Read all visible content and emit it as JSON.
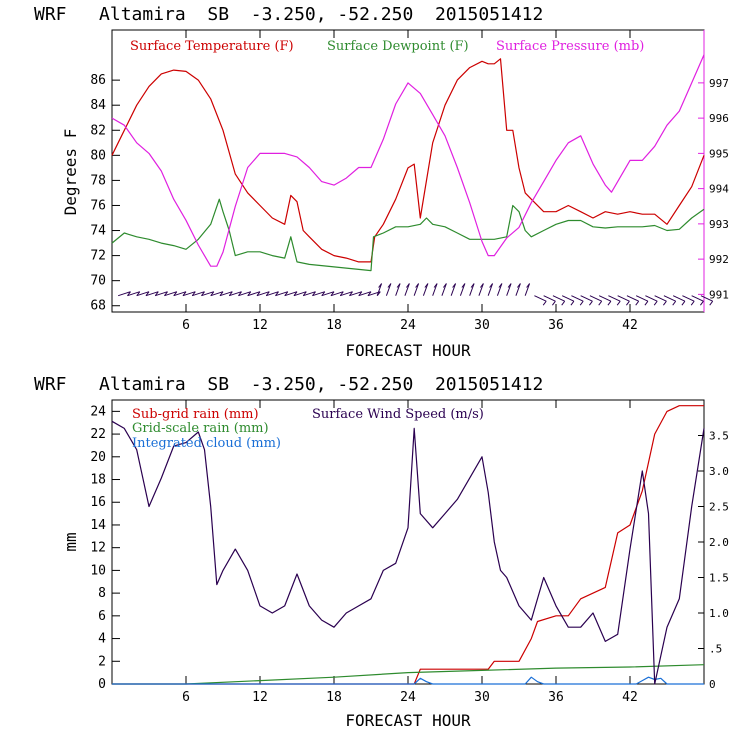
{
  "chart_data": [
    {
      "type": "line",
      "title": "WRF   Altamira  SB  -3.250, -52.250  2015051412",
      "xlabel": "FORECAST HOUR",
      "ylabel": "Degrees F",
      "xlim": [
        0,
        48
      ],
      "ylim": [
        67.5,
        90
      ],
      "x_ticks": [
        6,
        12,
        18,
        24,
        30,
        36,
        42
      ],
      "y_ticks": [
        68,
        70,
        72,
        74,
        76,
        78,
        80,
        82,
        84,
        86
      ],
      "y2lim": [
        990.5,
        998.5
      ],
      "y2_ticks": [
        991,
        992,
        993,
        994,
        995,
        996,
        997
      ],
      "legend": [
        "Surface Temperature (F)",
        "Surface Dewpoint (F)",
        "Surface Pressure (mb)"
      ],
      "colors": {
        "temperature": "#cc0000",
        "dewpoint": "#2e8b2e",
        "pressure": "#e020e0",
        "barbs": "#2a0050"
      },
      "series": [
        {
          "name": "Surface Temperature (F)",
          "axis": "left",
          "x": [
            0,
            1,
            2,
            3,
            4,
            5,
            6,
            7,
            8,
            9,
            10,
            11,
            12,
            13,
            14,
            14.5,
            15,
            15.5,
            16,
            17,
            18,
            19,
            20,
            21,
            21.3,
            22,
            23,
            24,
            24.5,
            25,
            25.5,
            26,
            27,
            28,
            29,
            30,
            30.5,
            31,
            31.5,
            32,
            32.5,
            33,
            33.5,
            34,
            35,
            36,
            37,
            38,
            39,
            40,
            41,
            42,
            43,
            44,
            45,
            46,
            47,
            48
          ],
          "y": [
            80,
            82,
            84,
            85.5,
            86.5,
            86.8,
            86.7,
            86,
            84.5,
            82,
            78.5,
            77,
            76,
            75,
            74.5,
            76.8,
            76.3,
            74,
            73.5,
            72.5,
            72,
            71.8,
            71.5,
            71.5,
            73.5,
            74.5,
            76.5,
            79,
            79.3,
            75,
            78,
            81,
            84,
            86,
            87,
            87.5,
            87.3,
            87.3,
            87.7,
            82,
            82,
            79,
            77,
            76.5,
            75.5,
            75.5,
            76,
            75.5,
            75,
            75.5,
            75.3,
            75.5,
            75.3,
            75.3,
            74.5,
            76,
            77.5,
            80
          ]
        },
        {
          "name": "Surface Dewpoint (F)",
          "axis": "left",
          "x": [
            0,
            1,
            2,
            3,
            4,
            5,
            6,
            7,
            8,
            8.7,
            9,
            9.5,
            10,
            11,
            12,
            13,
            14,
            14.5,
            15,
            16,
            17,
            18,
            19,
            20,
            21,
            21.2,
            22,
            23,
            24,
            25,
            25.5,
            26,
            27,
            28,
            29,
            30,
            31,
            32,
            32.5,
            33,
            33.5,
            34,
            35,
            36,
            37,
            38,
            39,
            40,
            41,
            42,
            43,
            44,
            45,
            46,
            47,
            48
          ],
          "y": [
            73,
            73.8,
            73.5,
            73.3,
            73,
            72.8,
            72.5,
            73.3,
            74.5,
            76.5,
            75.5,
            74,
            72,
            72.3,
            72.3,
            72,
            71.8,
            73.5,
            71.5,
            71.3,
            71.2,
            71.1,
            71,
            70.9,
            70.8,
            73.5,
            73.8,
            74.3,
            74.3,
            74.5,
            75,
            74.5,
            74.3,
            73.8,
            73.3,
            73.3,
            73.3,
            73.5,
            76,
            75.5,
            74,
            73.5,
            74,
            74.5,
            74.8,
            74.8,
            74.3,
            74.2,
            74.3,
            74.3,
            74.3,
            74.4,
            74,
            74.1,
            75,
            75.7
          ]
        },
        {
          "name": "Surface Pressure (mb)",
          "axis": "right",
          "x": [
            0,
            1,
            2,
            3,
            4,
            5,
            6,
            7,
            8,
            8.5,
            9,
            10,
            11,
            12,
            13,
            14,
            15,
            16,
            17,
            18,
            19,
            20,
            21,
            22,
            23,
            24,
            25,
            26,
            27,
            28,
            29,
            30,
            30.5,
            31,
            32,
            33,
            34,
            35,
            36,
            37,
            38,
            39,
            40,
            40.5,
            41,
            42,
            43,
            44,
            45,
            46,
            47,
            48
          ],
          "y": [
            996,
            995.8,
            995.3,
            995,
            994.5,
            993.7,
            993.1,
            992.4,
            991.8,
            991.8,
            992.2,
            993.5,
            994.6,
            995,
            995,
            995,
            994.9,
            994.6,
            994.2,
            994.1,
            994.3,
            994.6,
            994.6,
            995.4,
            996.4,
            997,
            996.7,
            996.1,
            995.5,
            994.6,
            993.6,
            992.5,
            992.1,
            992.1,
            992.6,
            992.9,
            993.6,
            994.2,
            994.8,
            995.3,
            995.5,
            994.7,
            994.1,
            993.9,
            994.2,
            994.8,
            994.8,
            995.2,
            995.8,
            996.2,
            997,
            997.8
          ]
        }
      ]
    },
    {
      "type": "line",
      "title": "WRF   Altamira  SB  -3.250, -52.250  2015051412",
      "xlabel": "FORECAST HOUR",
      "ylabel": "mm",
      "xlim": [
        0,
        48
      ],
      "ylim": [
        0,
        25
      ],
      "x_ticks": [
        6,
        12,
        18,
        24,
        30,
        36,
        42
      ],
      "y_ticks": [
        0,
        2,
        4,
        6,
        8,
        10,
        12,
        14,
        16,
        18,
        20,
        22,
        24
      ],
      "y2lim": [
        0,
        4.0
      ],
      "y2_ticks": [
        0,
        0.5,
        1.0,
        1.5,
        2.0,
        2.5,
        3.0,
        3.5
      ],
      "y2_tick_labels": [
        "0",
        ".5",
        "1.0",
        "1.5",
        "2.0",
        "2.5",
        "3.0",
        "3.5"
      ],
      "legend": [
        "Sub-grid rain (mm)",
        "Grid-scale rain (mm)",
        "Integrated cloud (mm)",
        "Surface Wind Speed (m/s)"
      ],
      "colors": {
        "subgrid": "#cc0000",
        "gridscale": "#2e8b2e",
        "cloud": "#1a6fd6",
        "wind": "#2a0050"
      },
      "series": [
        {
          "name": "Sub-grid rain (mm)",
          "axis": "left",
          "x": [
            0,
            24.5,
            25,
            30.5,
            31,
            33,
            34,
            34.5,
            36,
            37,
            38,
            40,
            41,
            42,
            43,
            44,
            45,
            46,
            48
          ],
          "y": [
            0,
            0,
            1.3,
            1.3,
            2,
            2,
            4,
            5.5,
            6,
            6,
            7.5,
            8.5,
            13.3,
            14,
            17,
            22,
            24,
            24.5,
            24.5
          ]
        },
        {
          "name": "Grid-scale rain (mm)",
          "axis": "left",
          "x": [
            0,
            6,
            12,
            18,
            24,
            30,
            36,
            42,
            48
          ],
          "y": [
            0,
            0,
            0.3,
            0.6,
            1,
            1.2,
            1.4,
            1.5,
            1.7
          ]
        },
        {
          "name": "Integrated cloud (mm)",
          "axis": "left",
          "x": [
            0,
            24.5,
            25,
            25.5,
            26,
            33.5,
            34,
            34.5,
            35,
            42.5,
            43,
            43.5,
            44,
            44.5,
            45,
            48
          ],
          "y": [
            0,
            0,
            0.5,
            0.2,
            0,
            0,
            0.6,
            0.2,
            0,
            0,
            0.3,
            0.6,
            0.4,
            0.5,
            0,
            0
          ]
        },
        {
          "name": "Surface Wind Speed (m/s)",
          "axis": "right",
          "x": [
            0,
            1,
            2,
            3,
            4,
            5,
            6,
            7,
            7.5,
            8,
            8.5,
            9,
            10,
            11,
            12,
            13,
            14,
            15,
            16,
            17,
            18,
            19,
            20,
            21,
            22,
            23,
            24,
            24.5,
            25,
            26,
            27,
            28,
            29,
            30,
            30.5,
            31,
            31.5,
            32,
            33,
            34,
            35,
            36,
            37,
            38,
            39,
            40,
            41,
            42,
            43,
            43.5,
            44,
            45,
            46,
            47,
            48
          ],
          "y": [
            3.7,
            3.6,
            3.3,
            2.5,
            2.9,
            3.35,
            3.4,
            3.55,
            3.3,
            2.5,
            1.4,
            1.6,
            1.9,
            1.6,
            1.1,
            1.0,
            1.1,
            1.55,
            1.1,
            0.9,
            0.8,
            1.0,
            1.1,
            1.2,
            1.6,
            1.7,
            2.2,
            3.6,
            2.4,
            2.2,
            2.4,
            2.6,
            2.9,
            3.2,
            2.7,
            2.0,
            1.6,
            1.5,
            1.1,
            0.9,
            1.5,
            1.1,
            0.8,
            0.8,
            1.0,
            0.6,
            0.7,
            1.9,
            3.0,
            2.4,
            0.0,
            0.8,
            1.2,
            2.5,
            3.6
          ]
        }
      ]
    }
  ]
}
